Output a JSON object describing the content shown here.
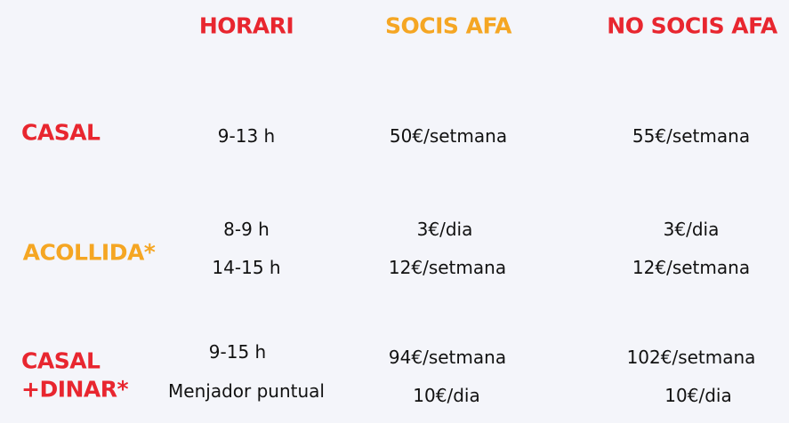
{
  "colors": {
    "red": "#e8262f",
    "orange": "#f5a623",
    "background": "#f4f5fa"
  },
  "headers": {
    "horari": "HORARI",
    "socis": "SOCIS AFA",
    "no_socis": "NO SOCIS AFA"
  },
  "rows": [
    {
      "label": "CASAL",
      "horari": [
        "9-13 h"
      ],
      "socis": [
        "50€/setmana"
      ],
      "no_socis": [
        "55€/setmana"
      ]
    },
    {
      "label": "ACOLLIDA*",
      "horari": [
        "8-9 h",
        "14-15 h"
      ],
      "socis": [
        "3€/dia",
        "12€/setmana"
      ],
      "no_socis": [
        "3€/dia",
        "12€/setmana"
      ]
    },
    {
      "label_lines": [
        "CASAL",
        "+DINAR*"
      ],
      "horari": [
        "9-15 h",
        "Menjador puntual"
      ],
      "socis": [
        "94€/setmana",
        "10€/dia"
      ],
      "no_socis": [
        "102€/setmana",
        "10€/dia"
      ]
    }
  ]
}
